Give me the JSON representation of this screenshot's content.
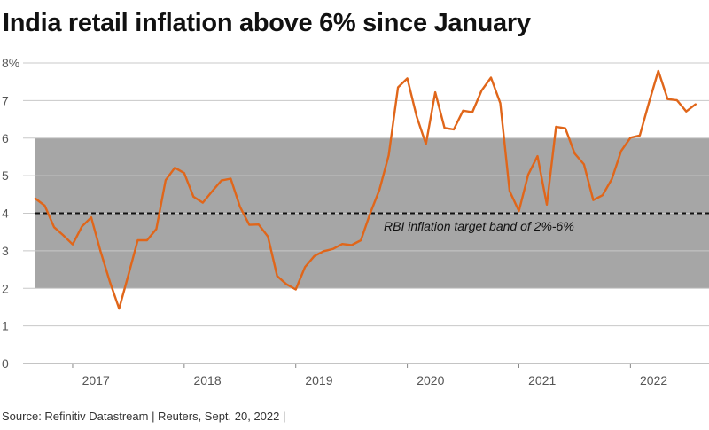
{
  "title": "India retail inflation above 6% since January",
  "source": "Source: Refinitiv Datastream | Reuters, Sept. 20, 2022 |",
  "colors": {
    "line": "#e0661a",
    "band": "#a6a6a6",
    "grid": "#c8c8c8",
    "target_line": "#111111"
  },
  "chart_data": {
    "type": "line",
    "title": "India retail inflation above 6% since January",
    "xlabel": "",
    "ylabel": "",
    "ylim": [
      0,
      8
    ],
    "xlim": [
      "2016-09",
      "2022-08"
    ],
    "y_ticks": [
      "0",
      "1",
      "2",
      "3",
      "4",
      "5",
      "6",
      "7",
      "8%"
    ],
    "x_ticks": [
      "2017",
      "2018",
      "2019",
      "2020",
      "2021",
      "2022"
    ],
    "grid": "horizontal",
    "band": {
      "low": 2,
      "high": 6
    },
    "target_line": 4,
    "annotation": "RBI inflation target band of 2%-6%",
    "series": [
      {
        "x": [
          "2016-09",
          "2016-10",
          "2016-11",
          "2016-12",
          "2017-01",
          "2017-02",
          "2017-03",
          "2017-04",
          "2017-05",
          "2017-06",
          "2017-07",
          "2017-08",
          "2017-09",
          "2017-10",
          "2017-11",
          "2017-12",
          "2018-01",
          "2018-02",
          "2018-03",
          "2018-04",
          "2018-05",
          "2018-06",
          "2018-07",
          "2018-08",
          "2018-09",
          "2018-10",
          "2018-11",
          "2018-12",
          "2019-01",
          "2019-02",
          "2019-03",
          "2019-04",
          "2019-05",
          "2019-06",
          "2019-07",
          "2019-08",
          "2019-09",
          "2019-10",
          "2019-11",
          "2019-12",
          "2020-01",
          "2020-02",
          "2020-03",
          "2020-04",
          "2020-05",
          "2020-06",
          "2020-07",
          "2020-08",
          "2020-09",
          "2020-10",
          "2020-11",
          "2020-12",
          "2021-01",
          "2021-02",
          "2021-03",
          "2021-04",
          "2021-05",
          "2021-06",
          "2021-07",
          "2021-08",
          "2021-09",
          "2021-10",
          "2021-11",
          "2021-12",
          "2022-01",
          "2022-02",
          "2022-03",
          "2022-04",
          "2022-05",
          "2022-06",
          "2022-07",
          "2022-08"
        ],
        "values": [
          4.39,
          4.2,
          3.63,
          3.41,
          3.17,
          3.65,
          3.89,
          2.99,
          2.18,
          1.46,
          2.36,
          3.28,
          3.28,
          3.58,
          4.88,
          5.21,
          5.07,
          4.44,
          4.28,
          4.58,
          4.87,
          4.92,
          4.17,
          3.69,
          3.7,
          3.38,
          2.33,
          2.11,
          1.97,
          2.57,
          2.86,
          2.99,
          3.05,
          3.18,
          3.15,
          3.28,
          3.99,
          4.62,
          5.54,
          7.35,
          7.59,
          6.58,
          5.84,
          7.22,
          6.27,
          6.23,
          6.73,
          6.69,
          7.27,
          7.61,
          6.93,
          4.59,
          4.06,
          5.03,
          5.52,
          4.23,
          6.3,
          6.26,
          5.59,
          5.3,
          4.35,
          4.48,
          4.91,
          5.66,
          6.01,
          6.07,
          6.95,
          7.79,
          7.04,
          7.01,
          6.71,
          6.9
        ]
      }
    ]
  }
}
